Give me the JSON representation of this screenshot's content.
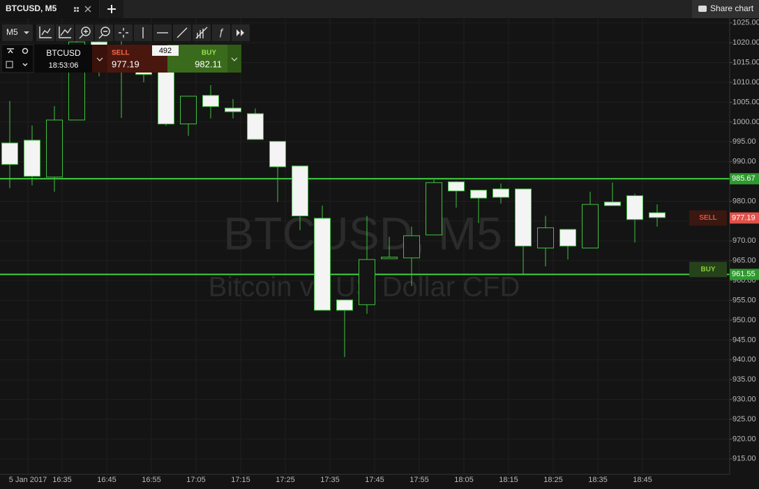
{
  "tab": {
    "title": "BTCUSD, M5"
  },
  "share": "Share chart",
  "toolbar": {
    "timeframe": "M5"
  },
  "trade_panel": {
    "symbol": "BTCUSD",
    "time": "18:53:06",
    "sell_label": "SELL",
    "sell_price": "977.19",
    "spread": "492",
    "buy_label": "BUY",
    "buy_price": "982.11"
  },
  "chart_data": {
    "type": "candlestick",
    "title": "BTCUSD, M5",
    "subtitle": "Bitcoin vs US Dollar CFD",
    "open": [
      994.7,
      995.4,
      986.1,
      1000.5,
      1020.2,
      1018.5,
      1015,
      1013.2,
      999.5,
      1006.7,
      1003.5,
      1002.1,
      995.1,
      988.9,
      975.7,
      955.1,
      953.9,
      965.5,
      965.7,
      971.5,
      984.9,
      982.8,
      983.1,
      983.1,
      968.2,
      972.9,
      968.2,
      979.8,
      981.4,
      977.1
    ],
    "high": [
      1005.3,
      999.1,
      1004,
      1022,
      1024,
      1021,
      1018,
      1015,
      1006.5,
      1009.3,
      1005.8,
      1003.4,
      995.1,
      988.9,
      978.9,
      955.1,
      976.3,
      971,
      973.6,
      985.4,
      985.1,
      982.8,
      984.5,
      983.1,
      976.3,
      972.9,
      982.4,
      984.7,
      981.9,
      979.2
    ],
    "low": [
      983.3,
      984,
      982.4,
      1000.5,
      1011.5,
      1001,
      1010,
      999,
      996.5,
      1000.9,
      1000.9,
      995.6,
      979.8,
      972.7,
      952.5,
      940.7,
      951.6,
      965.5,
      958.6,
      971.5,
      978.4,
      974.5,
      979.4,
      961.6,
      963.6,
      965.3,
      968.2,
      978.9,
      969.6,
      973.6
    ],
    "close": [
      989.3,
      986.3,
      1000.5,
      1020.2,
      1018.5,
      1015,
      1012,
      999.5,
      1006.5,
      1003.9,
      1002.6,
      995.6,
      988.7,
      976.3,
      952.5,
      952.5,
      965.3,
      965.9,
      971.3,
      984.7,
      982.6,
      980.8,
      981,
      968.7,
      973.3,
      968.7,
      979.2,
      978.9,
      975.4,
      975.9
    ],
    "colors": {
      "up": "#151515",
      "down": "#f4f4f4",
      "border": "#3fc43f"
    },
    "x_labels": [
      "5 Jan 2017",
      "16:35",
      "16:45",
      "16:55",
      "17:05",
      "17:15",
      "17:25",
      "17:35",
      "17:45",
      "17:55",
      "18:05",
      "18:15",
      "18:25",
      "18:35",
      "18:45"
    ],
    "ylim": [
      911.1,
      1026.2
    ],
    "yticks": [
      {
        "value": 1025,
        "label": "1025.00"
      },
      {
        "value": 1020,
        "label": "1020.00"
      },
      {
        "value": 1015,
        "label": "1015.00"
      },
      {
        "value": 1010,
        "label": "1010.00"
      },
      {
        "value": 1005,
        "label": "1005.00"
      },
      {
        "value": 1000,
        "label": "1000.00"
      },
      {
        "value": 995,
        "label": "995.00"
      },
      {
        "value": 990,
        "label": "990.00"
      },
      {
        "value": 985,
        "label": "985.00"
      },
      {
        "value": 980,
        "label": "980.00"
      },
      {
        "value": 975,
        "label": "975.00"
      },
      {
        "value": 970,
        "label": "970.00"
      },
      {
        "value": 965,
        "label": "965.00"
      },
      {
        "value": 960,
        "label": "960.00"
      },
      {
        "value": 955,
        "label": "955.00"
      },
      {
        "value": 950,
        "label": "950.00"
      },
      {
        "value": 945,
        "label": "945.00"
      },
      {
        "value": 940,
        "label": "940.00"
      },
      {
        "value": 935,
        "label": "935.00"
      },
      {
        "value": 930,
        "label": "930.00"
      },
      {
        "value": 925,
        "label": "925.00"
      },
      {
        "value": 920,
        "label": "920.00"
      },
      {
        "value": 915,
        "label": "915.00"
      }
    ],
    "grid": true,
    "levels": [
      985.67,
      961.55
    ],
    "level_color": "#3ed33e",
    "current_price": 977.19,
    "current_color": "#e0524a",
    "sell_badge": "SELL",
    "buy_badge": "BUY"
  }
}
